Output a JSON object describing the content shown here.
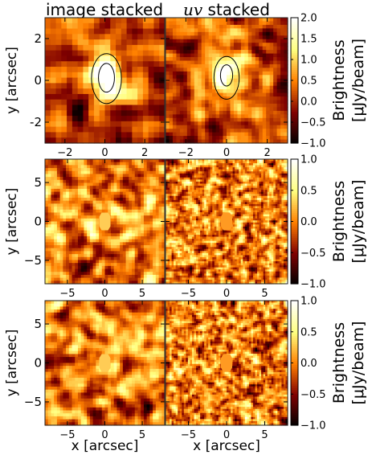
{
  "columns": {
    "left_title": "image stacked",
    "right_title_italic": "uv",
    "right_title_rest": " stacked"
  },
  "chart_data": [
    {
      "type": "heatmap",
      "row": 1,
      "panels": [
        "image stacked",
        "uv stacked"
      ],
      "xlabel": "",
      "ylabel": "y [arcsec]",
      "xlim": [
        -3,
        3
      ],
      "ylim": [
        -3,
        3
      ],
      "xticks": [
        -2,
        0,
        2
      ],
      "yticks": [
        -2,
        0,
        2
      ],
      "colorbar": {
        "label_line1": "Brightness",
        "label_line2": "[μJy/beam]",
        "range": [
          -1.0,
          2.0
        ],
        "ticks": [
          "2.0",
          "1.5",
          "1.0",
          "0.5",
          "0.0",
          "−0.5",
          "−1.0"
        ]
      },
      "source_peak": {
        "x": 0,
        "y": 0.2,
        "peak_brightness": 2.0
      },
      "contours": true
    },
    {
      "type": "heatmap",
      "row": 2,
      "panels": [
        "image stacked",
        "uv stacked"
      ],
      "xlabel": "",
      "ylabel": "y [arcsec]",
      "xlim": [
        -8,
        8
      ],
      "ylim": [
        -8,
        8
      ],
      "xticks": [
        -5,
        0,
        5
      ],
      "yticks": [
        -5,
        0,
        5
      ],
      "colorbar": {
        "label_line1": "Brightness",
        "label_line2": "[μJy/beam]",
        "range": [
          -1.0,
          1.0
        ],
        "ticks": [
          "1.0",
          "0.5",
          "0.0",
          "−0.5",
          "−1.0"
        ]
      },
      "masked_region": {
        "x": 0,
        "y": 0
      }
    },
    {
      "type": "heatmap",
      "row": 3,
      "panels": [
        "image stacked",
        "uv stacked"
      ],
      "xlabel": "x [arcsec]",
      "ylabel": "y [arcsec]",
      "xlim": [
        -8,
        8
      ],
      "ylim": [
        -8,
        8
      ],
      "xticks": [
        -5,
        0,
        5
      ],
      "yticks": [
        -5,
        0,
        5
      ],
      "colorbar": {
        "label_line1": "Brightness",
        "label_line2": "[μJy/beam]",
        "range": [
          -1.0,
          1.0
        ],
        "ticks": [
          "1.0",
          "0.5",
          "0.0",
          "−0.5",
          "−1.0"
        ]
      },
      "masked_region": {
        "x": 0,
        "y": 0
      }
    }
  ],
  "tick_labels": {
    "row1_x": [
      "−2",
      "0",
      "2"
    ],
    "row1_y": [
      "2",
      "0",
      "-2"
    ],
    "rowN_x": [
      "−5",
      "0",
      "5"
    ],
    "rowN_y": [
      "5",
      "0",
      "−5"
    ]
  }
}
